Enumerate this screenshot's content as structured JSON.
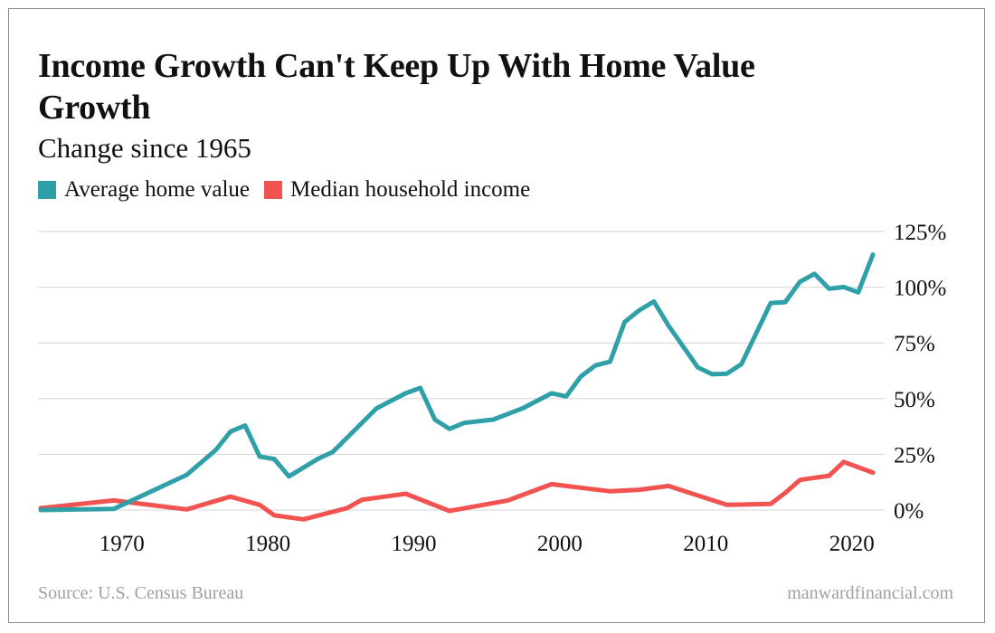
{
  "chart_data": {
    "type": "line",
    "title": "Income Growth Can't Keep Up With Home Value Growth",
    "subtitle": "Change since 1965",
    "xlim": [
      1965,
      2022
    ],
    "ylim": [
      -5,
      125
    ],
    "x_ticks": [
      1970,
      1980,
      1990,
      2000,
      2010,
      2020
    ],
    "y_ticks": [
      0,
      25,
      50,
      75,
      100,
      125
    ],
    "y_tick_labels": [
      "0%",
      "25%",
      "50%",
      "75%",
      "100%",
      "125%"
    ],
    "x_tick_labels": [
      "1970",
      "1980",
      "1990",
      "2000",
      "2010",
      "2020"
    ],
    "grid": "horizontal",
    "legend_placement": "top-left",
    "series": [
      {
        "name": "Average home value",
        "color": "#2fa0a7",
        "x": [
          1965,
          1970,
          1975,
          1977,
          1978,
          1979,
          1980,
          1981,
          1982,
          1984,
          1985,
          1988,
          1990,
          1991,
          1992,
          1993,
          1994,
          1996,
          1998,
          2000,
          2001,
          2002,
          2003,
          2004,
          2005,
          2006,
          2007,
          2008,
          2010,
          2011,
          2012,
          2013,
          2015,
          2016,
          2017,
          2018,
          2019,
          2020,
          2021,
          2022
        ],
        "y": [
          0,
          0.5,
          15.8,
          27,
          35.2,
          37.9,
          24,
          22.9,
          15.1,
          23,
          26,
          45.6,
          52.4,
          54.8,
          40.6,
          36.4,
          39.1,
          40.6,
          45.6,
          52.4,
          51,
          60,
          64.9,
          66.6,
          84.4,
          89.6,
          93.6,
          82.8,
          64.1,
          60.9,
          61.2,
          65.5,
          92.9,
          93.3,
          102.4,
          106,
          99.3,
          100.1,
          97.7,
          114.6
        ]
      },
      {
        "name": "Median household income",
        "color": "#f05350",
        "x": [
          1965,
          1970,
          1975,
          1978,
          1980,
          1981,
          1983,
          1986,
          1987,
          1990,
          1993,
          1997,
          2000,
          2004,
          2006,
          2008,
          2012,
          2015,
          2016,
          2017,
          2019,
          2020,
          2022
        ],
        "y": [
          0.8,
          4.3,
          0.3,
          6,
          2.3,
          -2.4,
          -4.2,
          0.9,
          4.6,
          7.3,
          -0.4,
          4.3,
          11.6,
          8.4,
          9.1,
          10.8,
          2.3,
          2.7,
          7.7,
          13.5,
          15.4,
          21.6,
          16.8
        ]
      }
    ]
  },
  "footer": {
    "source": "Source: U.S. Census Bureau",
    "brand": "manwardfinancial.com"
  }
}
